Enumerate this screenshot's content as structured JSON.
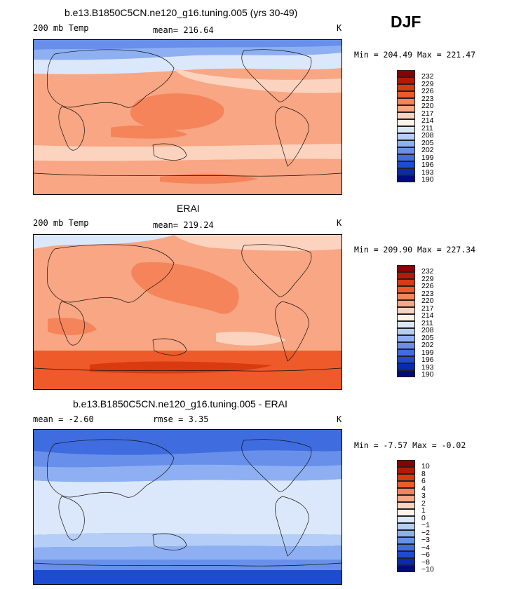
{
  "season_label": "DJF",
  "panels": [
    {
      "title": "b.e13.B1850C5CN.ne120_g16.tuning.005 (yrs 30-49)",
      "variable": "200 mb Temp",
      "stat_text": "mean=  216.64",
      "units": "K",
      "min_max_text": "Min = 204.49  Max = 221.47",
      "colorbar_ticks": [
        "232",
        "229",
        "226",
        "223",
        "220",
        "217",
        "214",
        "211",
        "208",
        "205",
        "202",
        "199",
        "196",
        "193",
        "190"
      ],
      "colorbar_colors": [
        "#8b0000",
        "#b51a00",
        "#d93a10",
        "#ee5a2a",
        "#f5845a",
        "#f8a683",
        "#fcd3bf",
        "#fff2ea",
        "#dbe8fb",
        "#b5cef7",
        "#8eb0f2",
        "#6890ea",
        "#3f6ddf",
        "#1d4cd0",
        "#0a2bb0",
        "#000c7a"
      ]
    },
    {
      "title": "ERAI",
      "variable": "200 mb Temp",
      "stat_text": "mean=  219.24",
      "units": "K",
      "min_max_text": "Min = 209.90  Max = 227.34",
      "colorbar_ticks": [
        "232",
        "229",
        "226",
        "223",
        "220",
        "217",
        "214",
        "211",
        "208",
        "205",
        "202",
        "199",
        "196",
        "193",
        "190"
      ],
      "colorbar_colors": [
        "#8b0000",
        "#b51a00",
        "#d93a10",
        "#ee5a2a",
        "#f5845a",
        "#f8a683",
        "#fcd3bf",
        "#fff2ea",
        "#dbe8fb",
        "#b5cef7",
        "#8eb0f2",
        "#6890ea",
        "#3f6ddf",
        "#1d4cd0",
        "#0a2bb0",
        "#000c7a"
      ]
    },
    {
      "title": "b.e13.B1850C5CN.ne120_g16.tuning.005 - ERAI",
      "variable": "",
      "stat_text": "mean =   -2.60",
      "rmse_text": "rmse =    3.35",
      "units": "K",
      "min_max_text": "Min =  -7.57  Max =  -0.02",
      "colorbar_ticks": [
        "10",
        "8",
        "6",
        "4",
        "3",
        "2",
        "1",
        "0",
        "−1",
        "−2",
        "−3",
        "−4",
        "−6",
        "−8",
        "−10"
      ],
      "colorbar_colors": [
        "#8b0000",
        "#b51a00",
        "#d93a10",
        "#ee5a2a",
        "#f5845a",
        "#f8a683",
        "#fcd3bf",
        "#fff2ea",
        "#dbe8fb",
        "#b5cef7",
        "#8eb0f2",
        "#6890ea",
        "#3f6ddf",
        "#1d4cd0",
        "#0a2bb0",
        "#000c7a"
      ]
    }
  ]
}
